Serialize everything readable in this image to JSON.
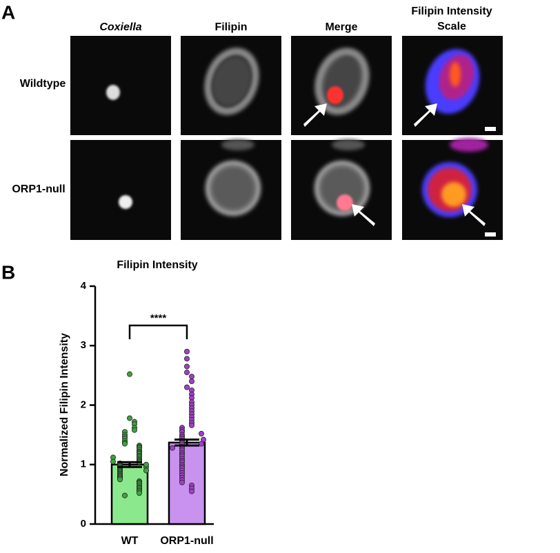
{
  "panel_a": {
    "label": "A",
    "columns": [
      "Coxiella",
      "Filipin",
      "Merge",
      "Filipin Intensity Scale"
    ],
    "rows": [
      "Wildtype",
      "ORP1-null"
    ]
  },
  "panel_b_label": "B",
  "chart_data": {
    "type": "bar",
    "title": "Filipin Intensity",
    "y_label": "Normalized Filipin Intensity",
    "categories": [
      "WT",
      "ORP1-null"
    ],
    "values": [
      1.0,
      1.37
    ],
    "errors": [
      0.04,
      0.05
    ],
    "colors": [
      "#8ce88c",
      "#c892ee"
    ],
    "point_colors": [
      "#3fa33f",
      "#a040c8"
    ],
    "points": [
      [
        2.52,
        1.78,
        1.72,
        1.68,
        1.62,
        1.58,
        1.55,
        1.5,
        1.47,
        1.44,
        1.4,
        1.37,
        1.35,
        1.32,
        1.3,
        1.28,
        1.25,
        1.22,
        1.2,
        1.18,
        1.15,
        1.13,
        1.1,
        1.08,
        1.06,
        1.04,
        1.02,
        1.0,
        0.99,
        0.97,
        0.95,
        0.93,
        0.91,
        0.89,
        0.87,
        0.85,
        0.83,
        0.81,
        0.79,
        0.77,
        0.75,
        0.72,
        0.7,
        0.68,
        0.65,
        0.62,
        0.6,
        0.57,
        0.55,
        0.52,
        0.48,
        1.12,
        1.05,
        0.96,
        0.9,
        1.0
      ],
      [
        2.9,
        2.78,
        2.65,
        2.55,
        2.48,
        2.4,
        2.3,
        2.25,
        2.18,
        2.12,
        2.05,
        2.0,
        1.95,
        1.9,
        1.85,
        1.8,
        1.75,
        1.7,
        1.66,
        1.62,
        1.58,
        1.55,
        1.5,
        1.47,
        1.44,
        1.4,
        1.37,
        1.34,
        1.3,
        1.27,
        1.24,
        1.2,
        1.17,
        1.14,
        1.1,
        1.07,
        1.04,
        1.0,
        0.97,
        0.94,
        0.9,
        0.86,
        0.82,
        0.78,
        0.74,
        0.7,
        0.65,
        0.6,
        0.55,
        1.35,
        1.42,
        1.28,
        1.52
      ]
    ],
    "annotation": "****",
    "ylim": [
      0,
      4
    ],
    "yticks": [
      0,
      1,
      2,
      3,
      4
    ]
  }
}
